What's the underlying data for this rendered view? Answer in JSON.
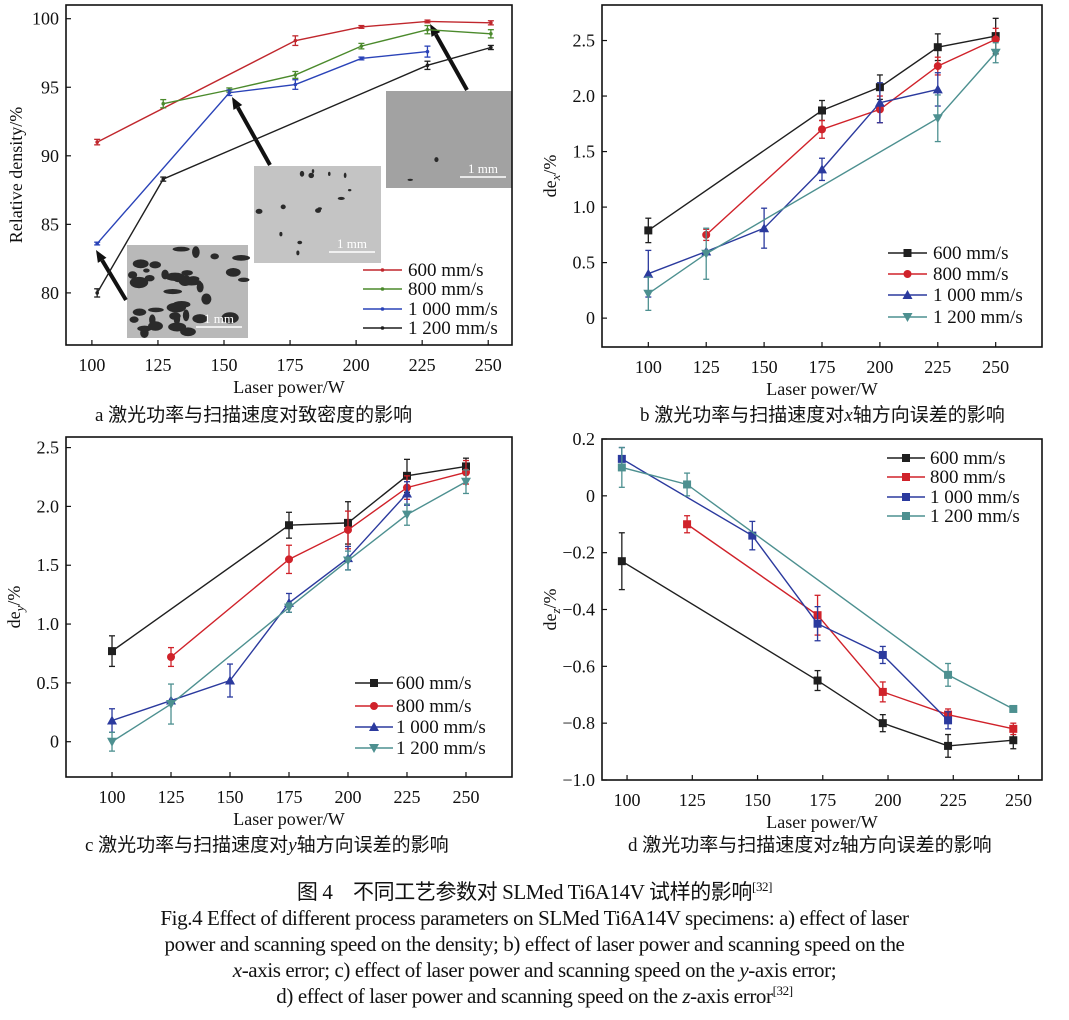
{
  "colors": {
    "black": "#1f1f1f",
    "red": "#d0222a",
    "green": "#4b8a2c",
    "blue": "#2b3a9e",
    "teal": "#4d9090",
    "a_red": "#c0272d",
    "a_blue": "#2a43b8"
  },
  "chart_data": [
    {
      "panel": "a",
      "type": "line",
      "xlabel": "Laser power/W",
      "ylabel": {
        "main": "Relative density/%",
        "sub": "",
        "unit": ""
      },
      "xlim": [
        90.2,
        259
      ],
      "ylim": [
        76.2,
        101
      ],
      "xticks": [
        100,
        125,
        150,
        175,
        200,
        225,
        250
      ],
      "xtick_labels": [
        "100",
        "125",
        "150",
        "175",
        "200",
        "225",
        "250"
      ],
      "yticks": [
        80,
        85,
        90,
        95,
        100
      ],
      "ytick_labels": [
        "80",
        "85",
        "90",
        "95",
        "100"
      ],
      "legend_position": "bottom-right",
      "marker": "dot",
      "series": [
        {
          "name": "600 mm/s",
          "color": "#c0272d",
          "x": [
            102,
            177,
            202,
            227,
            251
          ],
          "y": [
            91.0,
            98.4,
            99.4,
            99.8,
            99.7
          ],
          "err": [
            0.2,
            0.35,
            0.1,
            0.1,
            0.15
          ]
        },
        {
          "name": "800 mm/s",
          "color": "#4b8a2c",
          "x": [
            127,
            152,
            177,
            202,
            227,
            251
          ],
          "y": [
            93.8,
            94.8,
            95.9,
            98.0,
            99.2,
            98.9
          ],
          "err": [
            0.3,
            0.15,
            0.25,
            0.2,
            0.3,
            0.3
          ]
        },
        {
          "name": "1 000 mm/s",
          "color": "#2a43b8",
          "x": [
            102,
            152,
            177,
            202,
            227
          ],
          "y": [
            83.6,
            94.6,
            95.2,
            97.1,
            97.6
          ],
          "err": [
            0.1,
            0.2,
            0.35,
            0.1,
            0.4
          ]
        },
        {
          "name": "1 200 mm/s",
          "color": "#1f1f1f",
          "x": [
            102,
            127,
            227,
            251
          ],
          "y": [
            80.0,
            88.3,
            96.6,
            97.9
          ],
          "err": [
            0.3,
            0.15,
            0.3,
            0.15
          ]
        }
      ],
      "insets": [
        {
          "scale_label": "1 mm"
        },
        {
          "scale_label": "1 mm"
        },
        {
          "scale_label": "1 mm"
        }
      ]
    },
    {
      "panel": "b",
      "type": "line",
      "xlabel": "Laser power/W",
      "ylabel": {
        "main": "de",
        "sub": "x",
        "unit": "/%"
      },
      "xlim": [
        80,
        270
      ],
      "ylim": [
        -0.26,
        2.82
      ],
      "xticks": [
        100,
        125,
        150,
        175,
        200,
        225,
        250
      ],
      "xtick_labels": [
        "100",
        "125",
        "150",
        "175",
        "200",
        "225",
        "250"
      ],
      "yticks": [
        0,
        0.5,
        1.0,
        1.5,
        2.0,
        2.5
      ],
      "ytick_labels": [
        "0",
        "0.5",
        "1.0",
        "1.5",
        "2.0",
        "2.5"
      ],
      "legend_position": "bottom-right",
      "series": [
        {
          "name": "600 mm/s",
          "color": "#1f1f1f",
          "marker": "square",
          "x": [
            100,
            175,
            200,
            225,
            250
          ],
          "y": [
            0.79,
            1.87,
            2.08,
            2.44,
            2.54
          ],
          "err": [
            0.11,
            0.09,
            0.11,
            0.12,
            0.16
          ]
        },
        {
          "name": "800 mm/s",
          "color": "#d0222a",
          "marker": "circle",
          "x": [
            125,
            175,
            200,
            225,
            250
          ],
          "y": [
            0.75,
            1.7,
            1.88,
            2.27,
            2.51
          ],
          "err": [
            0.05,
            0.08,
            0.12,
            0.08,
            0.1
          ]
        },
        {
          "name": "1 000 mm/s",
          "color": "#2b3a9e",
          "marker": "triangle-up",
          "x": [
            100,
            125,
            150,
            175,
            200,
            225
          ],
          "y": [
            0.4,
            0.6,
            0.81,
            1.34,
            1.94,
            2.06
          ],
          "err": [
            0.21,
            0,
            0.18,
            0.1,
            0.18,
            0.15
          ]
        },
        {
          "name": "1 200 mm/s",
          "color": "#4d9090",
          "marker": "triangle-down",
          "x": [
            100,
            125,
            225,
            250
          ],
          "y": [
            0.22,
            0.58,
            1.8,
            2.39
          ],
          "err": [
            0.15,
            0.23,
            0.21,
            0.09
          ]
        }
      ]
    },
    {
      "panel": "c",
      "type": "line",
      "xlabel": "Laser power/W",
      "ylabel": {
        "main": "de",
        "sub": "y",
        "unit": "/%"
      },
      "xlim": [
        80.5,
        269.5
      ],
      "ylim": [
        -0.3,
        2.59
      ],
      "xticks": [
        100,
        125,
        150,
        175,
        200,
        225,
        250
      ],
      "xtick_labels": [
        "100",
        "125",
        "150",
        "175",
        "200",
        "225",
        "250"
      ],
      "yticks": [
        0,
        0.5,
        1.0,
        1.5,
        2.0,
        2.5
      ],
      "ytick_labels": [
        "0",
        "0.5",
        "1.0",
        "1.5",
        "2.0",
        "2.5"
      ],
      "legend_position": "bottom-right",
      "series": [
        {
          "name": "600 mm/s",
          "color": "#1f1f1f",
          "marker": "square",
          "x": [
            100,
            175,
            200,
            225,
            250
          ],
          "y": [
            0.77,
            1.84,
            1.86,
            2.26,
            2.34
          ],
          "err": [
            0.13,
            0.11,
            0.18,
            0.14,
            0.07
          ]
        },
        {
          "name": "800 mm/s",
          "color": "#d0222a",
          "marker": "circle",
          "x": [
            125,
            175,
            200,
            225,
            250
          ],
          "y": [
            0.72,
            1.55,
            1.8,
            2.16,
            2.29
          ],
          "err": [
            0.08,
            0.12,
            0.16,
            0.1,
            0.1
          ]
        },
        {
          "name": "1 000 mm/s",
          "color": "#2b3a9e",
          "marker": "triangle-up",
          "x": [
            100,
            125,
            150,
            175,
            200,
            225
          ],
          "y": [
            0.18,
            0.35,
            0.52,
            1.18,
            1.56,
            2.11
          ],
          "err": [
            0.1,
            0,
            0.14,
            0.08,
            0.1,
            0.1
          ]
        },
        {
          "name": "1 200 mm/s",
          "color": "#4d9090",
          "marker": "triangle-down",
          "x": [
            100,
            125,
            175,
            200,
            225,
            250
          ],
          "y": [
            0.0,
            0.32,
            1.14,
            1.54,
            1.93,
            2.21
          ],
          "err": [
            0.08,
            0.17,
            0.04,
            0.08,
            0.09,
            0.1
          ]
        }
      ]
    },
    {
      "panel": "d",
      "type": "line",
      "xlabel": "Laser power/W",
      "ylabel": {
        "main": "de",
        "sub": "z",
        "unit": "/%"
      },
      "xlim": [
        90.4,
        259
      ],
      "ylim": [
        -1.0,
        0.2
      ],
      "xticks": [
        100,
        125,
        150,
        175,
        200,
        225,
        250
      ],
      "xtick_labels": [
        "100",
        "125",
        "150",
        "175",
        "200",
        "225",
        "250"
      ],
      "yticks": [
        -1.0,
        -0.8,
        -0.6,
        -0.4,
        -0.2,
        0,
        0.2
      ],
      "ytick_labels": [
        "−1.0",
        "−0.8",
        "−0.6",
        "−0.4",
        "−0.2",
        "0",
        "0.2"
      ],
      "legend_position": "top-right",
      "series": [
        {
          "name": "600 mm/s",
          "color": "#1f1f1f",
          "marker": "square",
          "x": [
            98,
            173,
            198,
            223,
            248
          ],
          "y": [
            -0.23,
            -0.65,
            -0.8,
            -0.88,
            -0.86
          ],
          "err": [
            0.1,
            0.035,
            0.03,
            0.04,
            0.03
          ]
        },
        {
          "name": "800 mm/s",
          "color": "#d0222a",
          "marker": "square",
          "x": [
            123,
            173,
            198,
            223,
            248
          ],
          "y": [
            -0.1,
            -0.42,
            -0.69,
            -0.77,
            -0.82
          ],
          "err": [
            0.03,
            0.07,
            0.035,
            0.02,
            0.02
          ]
        },
        {
          "name": "1 000 mm/s",
          "color": "#2b3a9e",
          "marker": "square",
          "x": [
            98,
            148,
            173,
            198,
            223
          ],
          "y": [
            0.13,
            -0.14,
            -0.45,
            -0.56,
            -0.79
          ],
          "err": [
            0.04,
            0.05,
            0.06,
            0.03,
            0.03
          ]
        },
        {
          "name": "1 200 mm/s",
          "color": "#4d9090",
          "marker": "square",
          "x": [
            98,
            123,
            223,
            248
          ],
          "y": [
            0.1,
            0.04,
            -0.63,
            -0.75
          ],
          "err": [
            0.07,
            0.04,
            0.04,
            0.01
          ]
        }
      ]
    }
  ],
  "captions": {
    "a": {
      "prefix": "a  激光功率与扫描速度对致密度的影响",
      "var": "",
      "suffix": ""
    },
    "b": {
      "prefix": "b  激光功率与扫描速度对",
      "var": "x",
      "suffix": "轴方向误差的影响"
    },
    "c": {
      "prefix": "c  激光功率与扫描速度对",
      "var": "y",
      "suffix": "轴方向误差的影响"
    },
    "d": {
      "prefix": "d  激光功率与扫描速度对",
      "var": "z",
      "suffix": "轴方向误差的影响"
    }
  },
  "figure_caption": {
    "zh": "图 4　不同工艺参数对 SLMed Ti6A14V 试样的影响",
    "zh_ref": "[32]",
    "en_line1": "Fig.4 Effect of different process parameters on SLMed Ti6A14V specimens: a) effect of laser",
    "en_line2": "power and scanning speed on the density; b) effect of laser power and scanning speed on the",
    "en_line3_var1": "x",
    "en_line3_mid": "-axis error; c) effect of laser power and scanning speed on the ",
    "en_line3_var2": "y",
    "en_line3_end": "-axis error;",
    "en_line4_start": "d) effect of laser power and scanning speed on the ",
    "en_line4_var": "z",
    "en_line4_end": "-axis error",
    "en_ref": "[32]"
  }
}
